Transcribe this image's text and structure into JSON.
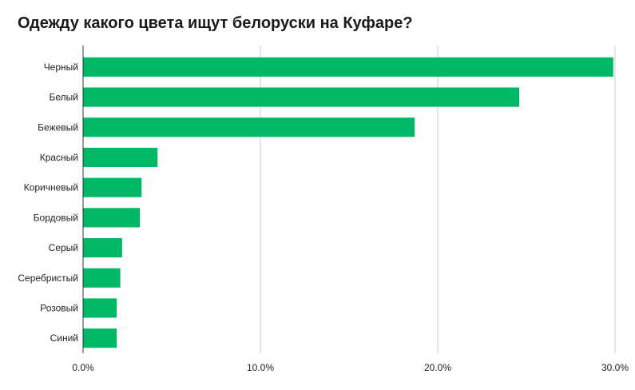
{
  "chart_data": {
    "type": "bar",
    "orientation": "horizontal",
    "title": "Одежду какого цвета ищут белоруски на Куфаре?",
    "categories": [
      "Черный",
      "Белый",
      "Бежевый",
      "Красный",
      "Коричневый",
      "Бордовый",
      "Серый",
      "Серебристый",
      "Розовый",
      "Синий"
    ],
    "values": [
      29.9,
      24.6,
      18.7,
      4.2,
      3.3,
      3.2,
      2.2,
      2.1,
      1.9,
      1.9
    ],
    "unit": "%",
    "xlim": [
      0,
      30
    ],
    "xticks": [
      0,
      10,
      20,
      30
    ],
    "xtick_labels": [
      "0.0%",
      "10.0%",
      "20.0%",
      "30.0%"
    ],
    "grid": "vertical",
    "bar_color": "#00b765"
  }
}
